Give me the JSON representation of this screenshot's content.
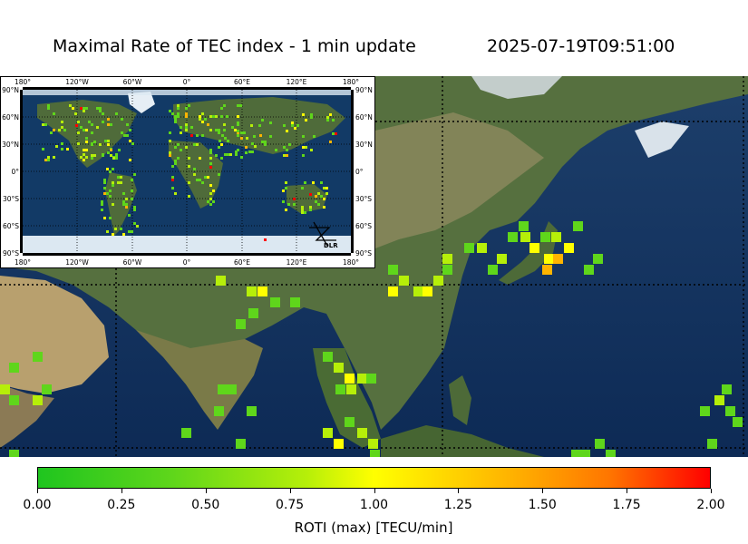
{
  "header": {
    "title": "Maximal Rate of TEC index - 1 min update",
    "timestamp": "2025-07-19T09:51:00"
  },
  "inset_map": {
    "top_lon_labels": [
      "180°",
      "120°W",
      "60°W",
      "0°",
      "60°E",
      "120°E",
      "180°"
    ],
    "bottom_lon_labels": [
      "180°",
      "120°W",
      "60°W",
      "0°",
      "60°E",
      "120°E",
      "180°"
    ],
    "left_lat_labels": [
      "90°N",
      "60°N",
      "30°N",
      "0°",
      "30°S",
      "60°S",
      "90°S"
    ],
    "right_lat_labels": [
      "90°N",
      "60°N",
      "30°N",
      "0°",
      "30°S",
      "60°S",
      "90°S"
    ],
    "logo_text": "DLR"
  },
  "colorbar": {
    "ticks": [
      "0.00",
      "0.25",
      "0.50",
      "0.75",
      "1.00",
      "1.25",
      "1.50",
      "1.75",
      "2.00"
    ],
    "label": "ROTI (max) [TECU/min]",
    "colors": [
      "#1fc51f",
      "#5fd61b",
      "#b6ef09",
      "#ffff00",
      "#ffb400",
      "#ff7600",
      "#ff0000"
    ],
    "range": [
      0,
      2
    ]
  },
  "colors": {
    "ocean": "#123a66",
    "land_green": "#4f6b3a",
    "land_desert": "#b59a6a",
    "ice": "#e6eef5"
  }
}
